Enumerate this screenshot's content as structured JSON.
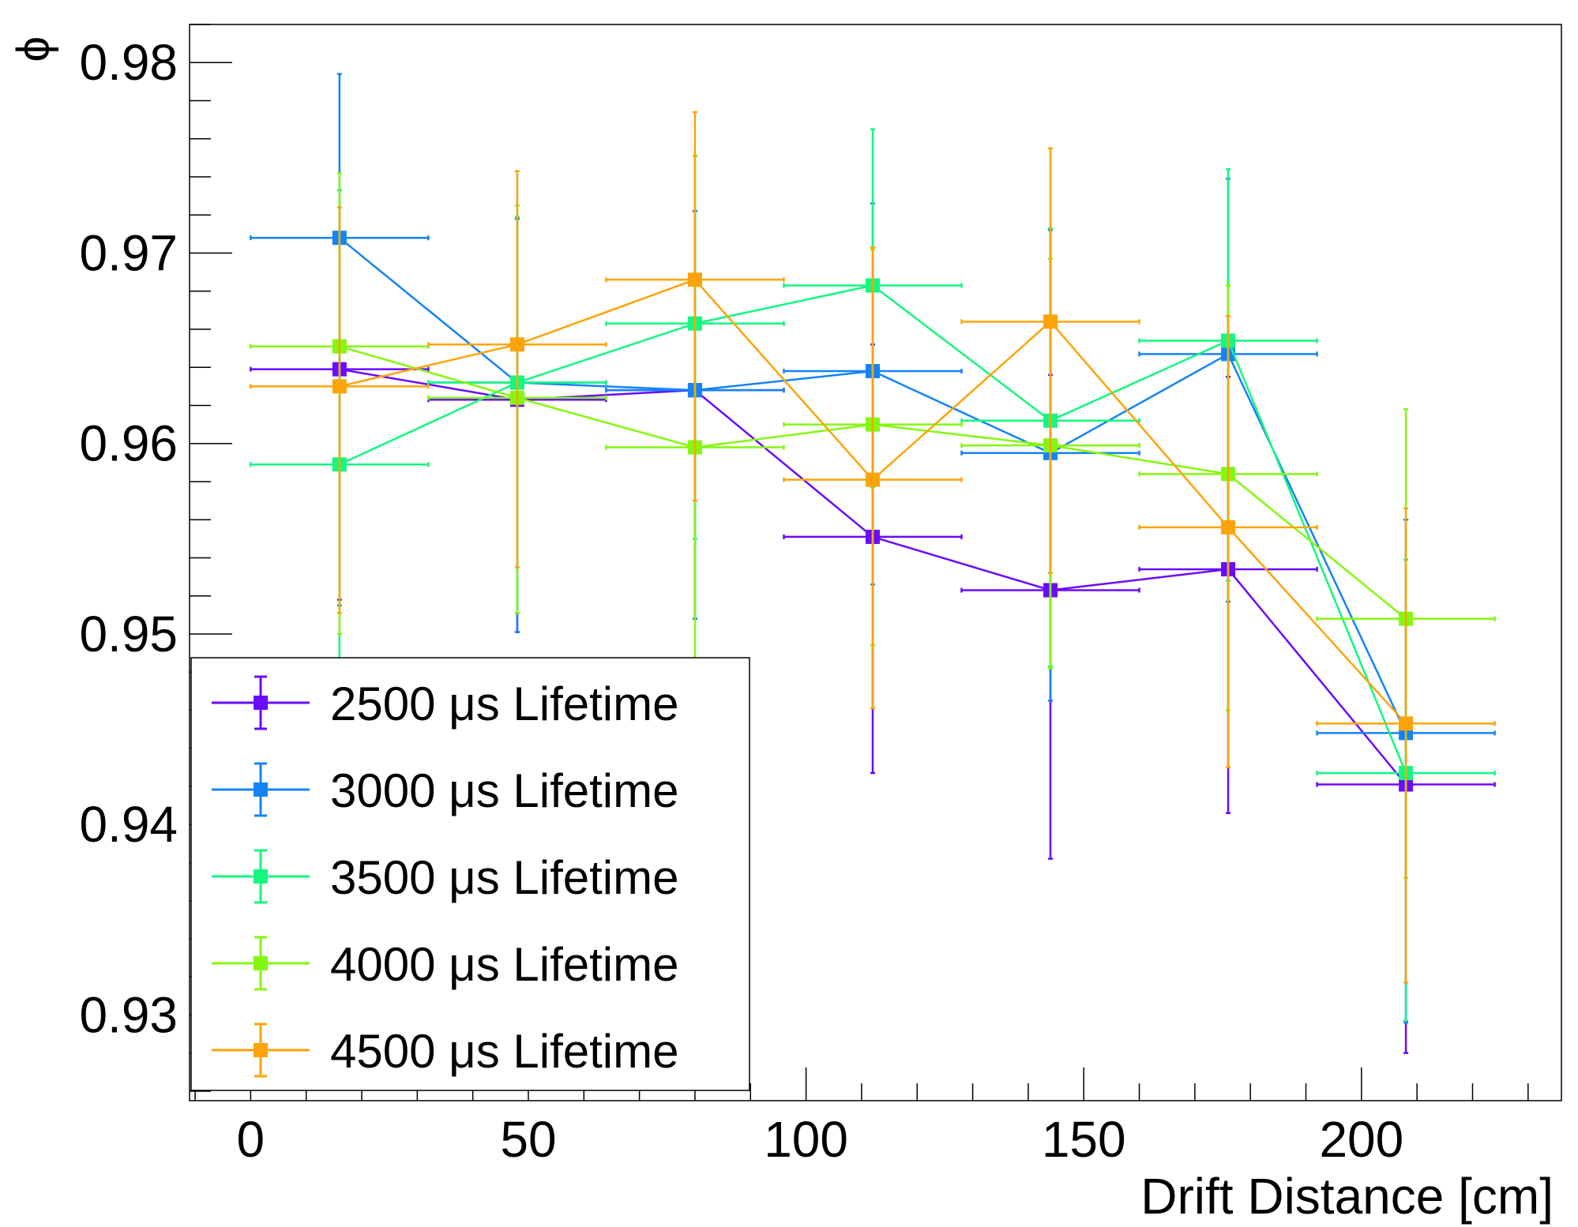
{
  "chart_data": {
    "type": "line",
    "title": "",
    "xlabel": "Drift Distance [cm]",
    "ylabel": "ϕ",
    "xlim": [
      -11,
      236
    ],
    "ylim": [
      0.9255,
      0.982
    ],
    "x_ticks": [
      "0",
      "50",
      "100",
      "150",
      "200"
    ],
    "y_ticks": [
      "0.93",
      "0.94",
      "0.95",
      "0.96",
      "0.97",
      "0.98"
    ],
    "legend_position": "bottom-left",
    "grid": false,
    "series": [
      {
        "name": "2500 μs Lifetime",
        "color": "#6a0aff",
        "points": [
          {
            "x": 16,
            "y": 0.9639,
            "xerr": 16,
            "yerr_low": 0.0121,
            "yerr_high": 0.0094
          },
          {
            "x": 48,
            "y": 0.9623,
            "xerr": 16,
            "yerr_low": 0.0122,
            "yerr_high": 0.0095
          },
          {
            "x": 80,
            "y": 0.9628,
            "xerr": 16,
            "yerr_low": 0.012,
            "yerr_high": 0.0094
          },
          {
            "x": 112,
            "y": 0.9551,
            "xerr": 16,
            "yerr_low": 0.0124,
            "yerr_high": 0.0101
          },
          {
            "x": 144,
            "y": 0.9523,
            "xerr": 16,
            "yerr_low": 0.0141,
            "yerr_high": 0.0113
          },
          {
            "x": 176,
            "y": 0.9534,
            "xerr": 16,
            "yerr_low": 0.0128,
            "yerr_high": 0.0101
          },
          {
            "x": 208,
            "y": 0.9421,
            "xerr": 16,
            "yerr_low": 0.0141,
            "yerr_high": 0.0139
          }
        ]
      },
      {
        "name": "3000 μs Lifetime",
        "color": "#1483f7",
        "points": [
          {
            "x": 16,
            "y": 0.9708,
            "xerr": 16,
            "yerr_low": 0.0193,
            "yerr_high": 0.0086
          },
          {
            "x": 48,
            "y": 0.9632,
            "xerr": 16,
            "yerr_low": 0.0131,
            "yerr_high": 0.0086
          },
          {
            "x": 80,
            "y": 0.9628,
            "xerr": 16,
            "yerr_low": 0.012,
            "yerr_high": 0.0094
          },
          {
            "x": 112,
            "y": 0.9638,
            "xerr": 16,
            "yerr_low": 0.0112,
            "yerr_high": 0.0088
          },
          {
            "x": 144,
            "y": 0.9595,
            "xerr": 16,
            "yerr_low": 0.013,
            "yerr_high": 0.0117
          },
          {
            "x": 176,
            "y": 0.9647,
            "xerr": 16,
            "yerr_low": 0.013,
            "yerr_high": 0.0092
          },
          {
            "x": 208,
            "y": 0.9448,
            "xerr": 16,
            "yerr_low": 0.0152,
            "yerr_high": 0.0112
          }
        ]
      },
      {
        "name": "3500 μs Lifetime",
        "color": "#14f780",
        "points": [
          {
            "x": 16,
            "y": 0.9589,
            "xerr": 16,
            "yerr_low": 0.0115,
            "yerr_high": 0.0144
          },
          {
            "x": 48,
            "y": 0.9632,
            "xerr": 16,
            "yerr_low": 0.0121,
            "yerr_high": 0.0087
          },
          {
            "x": 80,
            "y": 0.9663,
            "xerr": 16,
            "yerr_low": 0.0113,
            "yerr_high": 0.0088
          },
          {
            "x": 112,
            "y": 0.9683,
            "xerr": 16,
            "yerr_low": 0.0106,
            "yerr_high": 0.0082
          },
          {
            "x": 144,
            "y": 0.9612,
            "xerr": 16,
            "yerr_low": 0.0129,
            "yerr_high": 0.0101
          },
          {
            "x": 176,
            "y": 0.9654,
            "xerr": 16,
            "yerr_low": 0.0126,
            "yerr_high": 0.009
          },
          {
            "x": 208,
            "y": 0.9427,
            "xerr": 16,
            "yerr_low": 0.013,
            "yerr_high": 0.0112
          }
        ]
      },
      {
        "name": "4000 μs Lifetime",
        "color": "#85f70f",
        "points": [
          {
            "x": 16,
            "y": 0.9651,
            "xerr": 16,
            "yerr_low": 0.0151,
            "yerr_high": 0.0091
          },
          {
            "x": 48,
            "y": 0.9624,
            "xerr": 16,
            "yerr_low": 0.0113,
            "yerr_high": 0.0101
          },
          {
            "x": 80,
            "y": 0.9598,
            "xerr": 16,
            "yerr_low": 0.0112,
            "yerr_high": 0.0153
          },
          {
            "x": 112,
            "y": 0.961,
            "xerr": 16,
            "yerr_low": 0.0116,
            "yerr_high": 0.0092
          },
          {
            "x": 144,
            "y": 0.9599,
            "xerr": 16,
            "yerr_low": 0.0117,
            "yerr_high": 0.0098
          },
          {
            "x": 176,
            "y": 0.9584,
            "xerr": 16,
            "yerr_low": 0.0124,
            "yerr_high": 0.0099
          },
          {
            "x": 208,
            "y": 0.9508,
            "xerr": 16,
            "yerr_low": 0.0136,
            "yerr_high": 0.011
          }
        ]
      },
      {
        "name": "4500 μs Lifetime",
        "color": "#fba40a",
        "points": [
          {
            "x": 16,
            "y": 0.963,
            "xerr": 16,
            "yerr_low": 0.0119,
            "yerr_high": 0.0094
          },
          {
            "x": 48,
            "y": 0.9652,
            "xerr": 16,
            "yerr_low": 0.0117,
            "yerr_high": 0.0091
          },
          {
            "x": 80,
            "y": 0.9686,
            "xerr": 16,
            "yerr_low": 0.0116,
            "yerr_high": 0.0088
          },
          {
            "x": 112,
            "y": 0.9581,
            "xerr": 16,
            "yerr_low": 0.012,
            "yerr_high": 0.0122
          },
          {
            "x": 144,
            "y": 0.9664,
            "xerr": 16,
            "yerr_low": 0.0132,
            "yerr_high": 0.0091
          },
          {
            "x": 176,
            "y": 0.9556,
            "xerr": 16,
            "yerr_low": 0.0126,
            "yerr_high": 0.0111
          },
          {
            "x": 208,
            "y": 0.9453,
            "xerr": 16,
            "yerr_low": 0.0136,
            "yerr_high": 0.0113
          }
        ]
      }
    ]
  }
}
